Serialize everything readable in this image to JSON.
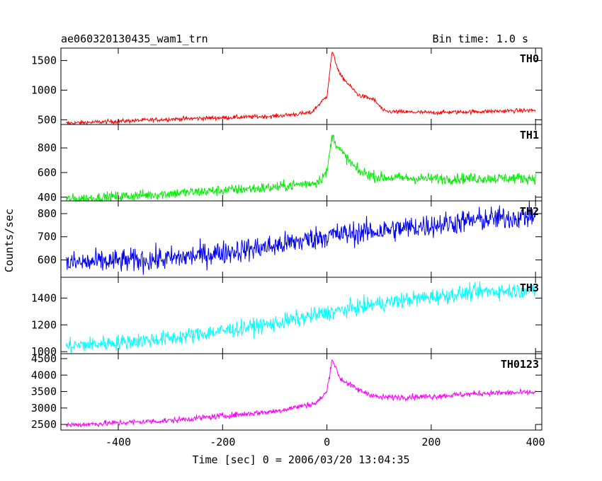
{
  "header": {
    "title": "ae060320130435_wam1_trn",
    "bin_time": "Bin time: 1.0 s"
  },
  "chart_data": {
    "type": "line",
    "xlabel": "Time [sec] 0 = 2006/03/20 13:04:35",
    "ylabel": "Counts/sec",
    "xlim": [
      -510,
      412
    ],
    "x_ticks": [
      -400,
      -200,
      0,
      200,
      400
    ],
    "x_range": [
      -500,
      400
    ],
    "x_step": 1,
    "grid": false,
    "panels": [
      {
        "name": "TH0",
        "color": "#ff0000",
        "ylim": [
          420,
          1710
        ],
        "y_ticks": [
          500,
          1000,
          1500
        ],
        "noise": 18,
        "profile": [
          [
            -500,
            440
          ],
          [
            -300,
            510
          ],
          [
            -100,
            560
          ],
          [
            -30,
            620
          ],
          [
            0,
            900
          ],
          [
            10,
            1650
          ],
          [
            25,
            1260
          ],
          [
            60,
            920
          ],
          [
            90,
            840
          ],
          [
            110,
            640
          ],
          [
            200,
            620
          ],
          [
            300,
            640
          ],
          [
            400,
            660
          ]
        ]
      },
      {
        "name": "TH1",
        "color": "#00ee00",
        "ylim": [
          370,
          990
        ],
        "y_ticks": [
          400,
          600,
          800
        ],
        "noise": 22,
        "profile": [
          [
            -500,
            380
          ],
          [
            -300,
            430
          ],
          [
            -100,
            480
          ],
          [
            -20,
            520
          ],
          [
            0,
            600
          ],
          [
            10,
            900
          ],
          [
            25,
            780
          ],
          [
            60,
            610
          ],
          [
            100,
            560
          ],
          [
            200,
            550
          ],
          [
            400,
            555
          ]
        ]
      },
      {
        "name": "TH2",
        "color": "#0000ee",
        "ylim": [
          525,
          855
        ],
        "y_ticks": [
          600,
          700,
          800
        ],
        "noise": 26,
        "profile": [
          [
            -500,
            585
          ],
          [
            -300,
            605
          ],
          [
            -100,
            660
          ],
          [
            0,
            705
          ],
          [
            100,
            725
          ],
          [
            200,
            750
          ],
          [
            300,
            775
          ],
          [
            400,
            790
          ]
        ]
      },
      {
        "name": "TH3",
        "color": "#00ffff",
        "ylim": [
          985,
          1555
        ],
        "y_ticks": [
          1000,
          1200,
          1400
        ],
        "noise": 30,
        "profile": [
          [
            -500,
            1040
          ],
          [
            -300,
            1100
          ],
          [
            -100,
            1210
          ],
          [
            0,
            1290
          ],
          [
            100,
            1360
          ],
          [
            200,
            1410
          ],
          [
            300,
            1450
          ],
          [
            400,
            1460
          ]
        ]
      },
      {
        "name": "TH0123",
        "color": "#ff00ff",
        "ylim": [
          2330,
          4650
        ],
        "y_ticks": [
          2500,
          3000,
          3500,
          4000,
          4500
        ],
        "noise": 45,
        "profile": [
          [
            -500,
            2480
          ],
          [
            -300,
            2620
          ],
          [
            -100,
            2900
          ],
          [
            -20,
            3150
          ],
          [
            0,
            3500
          ],
          [
            10,
            4500
          ],
          [
            25,
            3900
          ],
          [
            60,
            3550
          ],
          [
            100,
            3320
          ],
          [
            200,
            3350
          ],
          [
            300,
            3450
          ],
          [
            400,
            3470
          ]
        ]
      }
    ]
  }
}
